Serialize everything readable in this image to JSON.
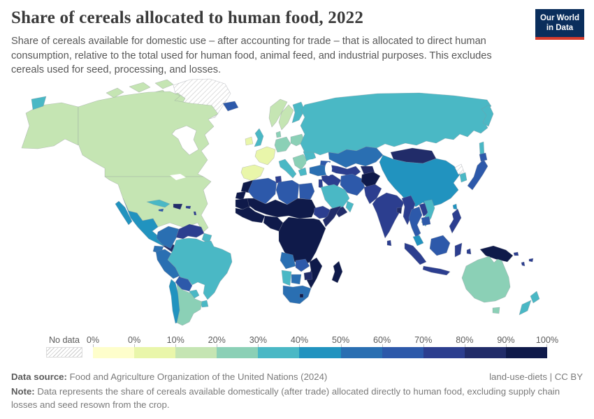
{
  "header": {
    "title": "Share of cereals allocated to human food, 2022",
    "subtitle": "Share of cereals available for domestic use – after accounting for trade – that is allocated to direct human consumption, relative to the total used for human food, animal feed, and industrial purposes. This excludes cereals used for seed, processing, and losses."
  },
  "logo": {
    "line1": "Our World",
    "line2": "in Data",
    "bg": "#0a2e5c",
    "accent": "#d73c2c"
  },
  "legend": {
    "no_data_label": "No data",
    "boundary_labels": [
      "0%",
      "0%",
      "10%",
      "20%",
      "30%",
      "40%",
      "50%",
      "60%",
      "70%",
      "80%",
      "90%",
      "100%"
    ]
  },
  "footer": {
    "source_label": "Data source:",
    "source_text": "Food and Agriculture Organization of the United Nations (2024)",
    "license_text": "land-use-diets | CC BY",
    "note_label": "Note:",
    "note_text": "Data represents the share of cereals available domestically (after trade) allocated directly to human food, excluding supply chain losses and seed resown from the crop."
  },
  "chart_data": {
    "type": "choropleth_map",
    "title": "Share of cereals allocated to human food, 2022",
    "year": 2022,
    "unit": "%",
    "bin_edges_percent": [
      0,
      0,
      10,
      20,
      30,
      40,
      50,
      60,
      70,
      80,
      90,
      100
    ],
    "bin_ranges": [
      "0%",
      "0-10%",
      "10-20%",
      "20-30%",
      "30-40%",
      "40-50%",
      "50-60%",
      "60-70%",
      "70-80%",
      "80-90%",
      "90-100%"
    ],
    "bin_colors": [
      "#fefecb",
      "#e9f6aa",
      "#c5e5b3",
      "#8bd0b6",
      "#4ab8c5",
      "#2193bf",
      "#2a6fb2",
      "#2d59aa",
      "#2c3e8f",
      "#212c69",
      "#0f1a4a"
    ],
    "no_data_style": "diagonal-hatch",
    "legend_position": "bottom",
    "regions": {
      "greenland": "no-data",
      "canada": 2,
      "alaska": 2,
      "usa": 2,
      "mexico": 5,
      "central-america-north": 9,
      "central-america-south": 7,
      "cuba": 4,
      "jamaica": 7,
      "hispaniola": 9,
      "puerto-rico": 8,
      "lesser-antilles": 8,
      "colombia": 6,
      "venezuela": 8,
      "guyanas": 4,
      "ecuador": 6,
      "peru": 6,
      "brazil": 4,
      "bolivia": 7,
      "paraguay": 4,
      "uruguay": 4,
      "chile": 5,
      "argentina": 3,
      "iceland": 7,
      "ireland": 1,
      "uk": 4,
      "norway": 2,
      "sweden": 2,
      "finland": 4,
      "denmark": 3,
      "germany": 3,
      "poland": 3,
      "france": 1,
      "iberia": 1,
      "italy": 4,
      "balkans": 3,
      "greece": 4,
      "romania": 4,
      "russia": 4,
      "kazakhstan": 6,
      "uzbek-turkmen": 8,
      "kyrgyz-tajik": 9,
      "caucasus": 7,
      "turkey": 6,
      "syria-iraq": 8,
      "israel-jordan": 8,
      "iran": 7,
      "afghanistan": 10,
      "pakistan": 8,
      "saudi-arabia": 4,
      "yemen": 9,
      "oman": 4,
      "india": 8,
      "bangladesh": 9,
      "sri-lanka": 8,
      "mongolia": 9,
      "china": 5,
      "north-korea": "no-data",
      "south-korea": 4,
      "japan": 7,
      "taiwan": 5,
      "myanmar": 8,
      "thailand": 7,
      "laos": 8,
      "vietnam": 4,
      "cambodia": 7,
      "malaysia": 5,
      "sumatra": 8,
      "java": 8,
      "borneo": 7,
      "sulawesi": 8,
      "philippines": 8,
      "new-guinea": 10,
      "australia": 3,
      "new-zealand": 4,
      "pacific-islands": 8,
      "morocco": 10,
      "western-sahara": 10,
      "algeria": 7,
      "tunisia": 8,
      "libya": 7,
      "egypt": 7,
      "mauritania": 10,
      "sahel-sudan": 10,
      "west-africa": 10,
      "nigeria-gulf": 10,
      "ethiopia": 8,
      "somalia": 9,
      "central-east-africa": 10,
      "angola": 6,
      "zambia": 7,
      "mozambique": 10,
      "zimbabwe": 9,
      "namibia": 4,
      "botswana": 6,
      "south-africa": 6,
      "lesotho": 10,
      "madagascar": 10
    }
  }
}
